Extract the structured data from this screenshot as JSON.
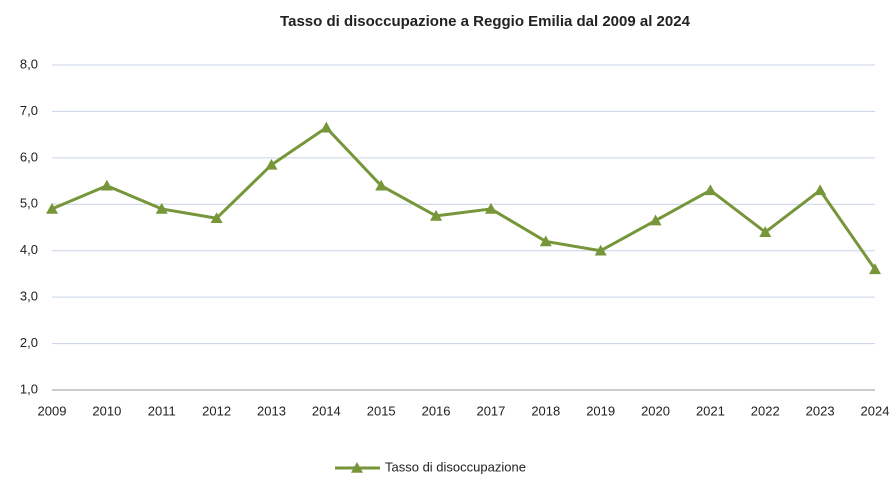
{
  "chart_data": {
    "type": "line",
    "title": "Tasso  di disoccupazione  a Reggio Emilia  dal 2009 al 2024",
    "categories": [
      "2009",
      "2010",
      "2011",
      "2012",
      "2013",
      "2014",
      "2015",
      "2016",
      "2017",
      "2018",
      "2019",
      "2020",
      "2021",
      "2022",
      "2023",
      "2024"
    ],
    "series": [
      {
        "name": "Tasso di disoccupazione",
        "color": "#77963a",
        "values": [
          4.9,
          5.4,
          4.9,
          4.7,
          5.85,
          6.65,
          5.4,
          4.75,
          4.9,
          4.2,
          4.0,
          4.65,
          5.3,
          4.4,
          5.3,
          3.6
        ]
      }
    ],
    "ylim": [
      1,
      8
    ],
    "yticks": [
      {
        "value": 1,
        "label": "1,0"
      },
      {
        "value": 2,
        "label": "2,0"
      },
      {
        "value": 3,
        "label": "3,0"
      },
      {
        "value": 4,
        "label": "4,0"
      },
      {
        "value": 5,
        "label": "5,0"
      },
      {
        "value": 6,
        "label": "6,0"
      },
      {
        "value": 7,
        "label": "7,0"
      },
      {
        "value": 8,
        "label": "8,0"
      }
    ],
    "grid": true,
    "legend": "bottom"
  }
}
